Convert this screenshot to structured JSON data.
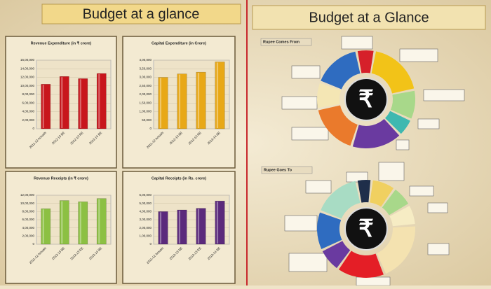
{
  "header": {
    "left_title": "Budget at a glance",
    "right_title": "Budget at a Glance"
  },
  "chart_data": [
    {
      "type": "bar",
      "title": "Revenue Expenditure (in ₹ crore)",
      "categories": [
        "2011-12 Actuals",
        "2012-13 BE",
        "2012-13 RE",
        "2013-14 BE"
      ],
      "values": [
        1040000,
        1220000,
        1170000,
        1290000
      ],
      "color": "#c8161c",
      "ylim": [
        0,
        1600000
      ],
      "yticks": [
        0,
        {
          "value": 200000,
          "label": "2,00,000"
        },
        {
          "value": 400000,
          "label": "4,00,000"
        },
        {
          "value": 600000,
          "label": "6,00,000"
        },
        {
          "value": 800000,
          "label": "8,00,000"
        },
        {
          "value": 1000000,
          "label": "10,00,000"
        },
        {
          "value": 1200000,
          "label": "12,00,000"
        },
        {
          "value": 1400000,
          "label": "14,00,000"
        },
        {
          "value": 1600000,
          "label": "16,00,000"
        }
      ]
    },
    {
      "type": "bar",
      "title": "Capital Expenditure (in Crore)",
      "categories": [
        "2011-12 Actuals",
        "2012-13 BE",
        "2012-13 RE",
        "2013-14 BE"
      ],
      "values": [
        300000,
        320000,
        330000,
        390000
      ],
      "color": "#e8a817",
      "ylim": [
        0,
        400000
      ],
      "yticks": [
        0,
        {
          "value": 50000,
          "label": "50,000"
        },
        {
          "value": 100000,
          "label": "1,00,000"
        },
        {
          "value": 150000,
          "label": "1,50,000"
        },
        {
          "value": 200000,
          "label": "2,00,000"
        },
        {
          "value": 250000,
          "label": "2,50,000"
        },
        {
          "value": 300000,
          "label": "3,00,000"
        },
        {
          "value": 350000,
          "label": "3,50,000"
        },
        {
          "value": 400000,
          "label": "4,00,000"
        }
      ]
    },
    {
      "type": "bar",
      "title": "Revenue Receipts (in ₹ crore)",
      "categories": [
        "2011-12 Actuals",
        "2012-13 BE",
        "2012-13 RE",
        "2013-14 BE"
      ],
      "values": [
        870000,
        1070000,
        1040000,
        1120000
      ],
      "color": "#8cc043",
      "ylim": [
        0,
        1200000
      ],
      "yticks": [
        0,
        {
          "value": 200000,
          "label": "2,00,000"
        },
        {
          "value": 400000,
          "label": "4,00,000"
        },
        {
          "value": 600000,
          "label": "6,00,000"
        },
        {
          "value": 800000,
          "label": "8,00,000"
        },
        {
          "value": 1000000,
          "label": "10,00,000"
        },
        {
          "value": 1200000,
          "label": "12,00,000"
        }
      ]
    },
    {
      "type": "bar",
      "title": "Capital Receipts (in Rs. crore)",
      "categories": [
        "2011-12 Actuals",
        "2012-13 BE",
        "2012-13 RE",
        "2013-14 BE"
      ],
      "values": [
        400000,
        420000,
        440000,
        530000
      ],
      "color": "#5b2a7c",
      "ylim": [
        0,
        600000
      ],
      "yticks": [
        0,
        {
          "value": 100000,
          "label": "1,00,000"
        },
        {
          "value": 200000,
          "label": "2,00,000"
        },
        {
          "value": 300000,
          "label": "3,00,000"
        },
        {
          "value": 400000,
          "label": "4,00,000"
        },
        {
          "value": 500000,
          "label": "5,00,000"
        },
        {
          "value": 600000,
          "label": "6,00,000"
        }
      ]
    },
    {
      "type": "pie",
      "title": "Rupee Comes From",
      "center_label": "₹",
      "values": [
        6,
        19,
        10,
        6,
        17,
        17,
        9,
        16
      ],
      "colors": [
        "#d6202a",
        "#f2c318",
        "#a8d88a",
        "#3fb8b0",
        "#6a3aa0",
        "#ea7a2c",
        "#f4e6b4",
        "#2f6cc0"
      ]
    },
    {
      "type": "pie",
      "title": "Rupee Goes To",
      "center_label": "₹",
      "values": [
        5,
        8,
        7,
        7,
        20,
        16,
        8,
        13,
        16
      ],
      "colors": [
        "#1f2e4a",
        "#f0d060",
        "#a8d88a",
        "#f6ecc4",
        "#f4e2b0",
        "#e41e26",
        "#6a3aa0",
        "#2f6cc0",
        "#a8dcc4"
      ]
    }
  ]
}
